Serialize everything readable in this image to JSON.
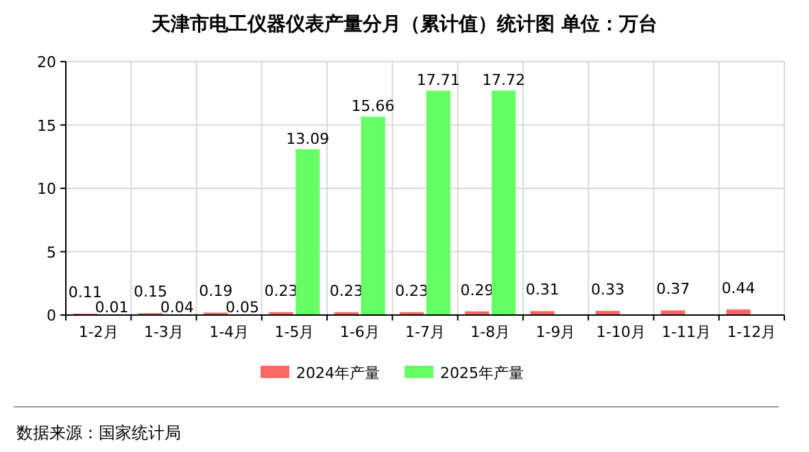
{
  "chart_data": {
    "type": "bar",
    "title": "天津市电工仪器仪表产量分月（累计值）统计图 单位：万台",
    "categories": [
      "1-2月",
      "1-3月",
      "1-4月",
      "1-5月",
      "1-6月",
      "1-7月",
      "1-8月",
      "1-9月",
      "1-10月",
      "1-11月",
      "1-12月"
    ],
    "series": [
      {
        "name": "2024年产量",
        "color": "#ff6666",
        "values": [
          0.11,
          0.15,
          0.19,
          0.23,
          0.23,
          0.23,
          0.29,
          0.31,
          0.33,
          0.37,
          0.44
        ]
      },
      {
        "name": "2025年产量",
        "color": "#66ff66",
        "values": [
          0.01,
          0.04,
          0.05,
          13.09,
          15.66,
          17.71,
          17.72,
          null,
          null,
          null,
          null
        ]
      }
    ],
    "ylim": [
      0,
      20
    ],
    "yticks": [
      0,
      5,
      10,
      15,
      20
    ],
    "grid": true,
    "legend": "bottom",
    "data_labels": true,
    "annotations": [
      "数据来源：国家统计局"
    ]
  }
}
